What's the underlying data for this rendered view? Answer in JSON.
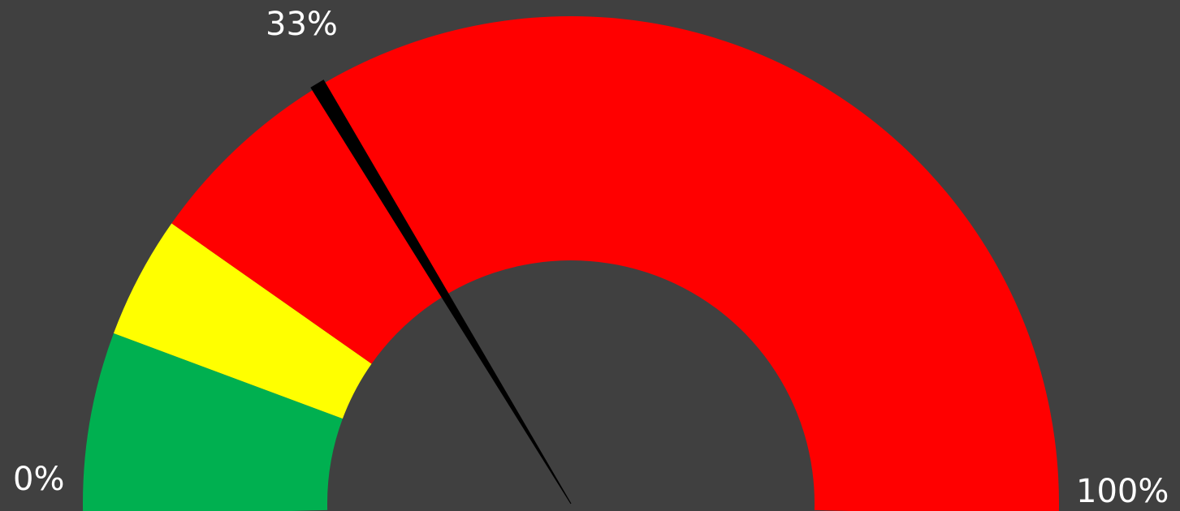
{
  "chart_data": {
    "type": "gauge",
    "min": 0,
    "max": 100,
    "value": 33,
    "unit": "%",
    "labels": {
      "min": "0%",
      "max": "100%",
      "value": "33%"
    },
    "bands": [
      {
        "from": 0,
        "to": 12,
        "color": "#00b050"
      },
      {
        "from": 12,
        "to": 20,
        "color": "#ffff00"
      },
      {
        "from": 20,
        "to": 100,
        "color": "#ff0000"
      }
    ],
    "needle_color": "#000000",
    "background_color": "#404040"
  }
}
